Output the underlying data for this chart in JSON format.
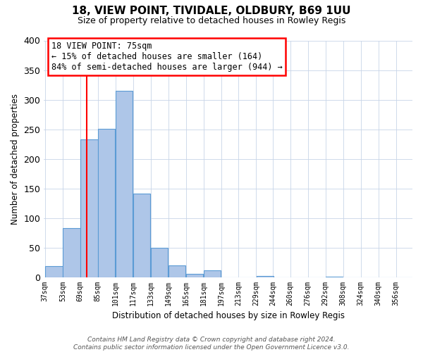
{
  "title": "18, VIEW POINT, TIVIDALE, OLDBURY, B69 1UU",
  "subtitle": "Size of property relative to detached houses in Rowley Regis",
  "xlabel": "Distribution of detached houses by size in Rowley Regis",
  "ylabel": "Number of detached properties",
  "bin_labels": [
    "37sqm",
    "53sqm",
    "69sqm",
    "85sqm",
    "101sqm",
    "117sqm",
    "133sqm",
    "149sqm",
    "165sqm",
    "181sqm",
    "197sqm",
    "213sqm",
    "229sqm",
    "244sqm",
    "260sqm",
    "276sqm",
    "292sqm",
    "308sqm",
    "324sqm",
    "340sqm",
    "356sqm"
  ],
  "bar_values": [
    19,
    83,
    233,
    251,
    315,
    141,
    50,
    20,
    5,
    11,
    0,
    0,
    2,
    0,
    0,
    0,
    1,
    0,
    0,
    0,
    0
  ],
  "bar_color": "#aec6e8",
  "bar_edge_color": "#5b9bd5",
  "vline_x": 75,
  "vline_color": "red",
  "ylim": [
    0,
    400
  ],
  "annotation_line1": "18 VIEW POINT: 75sqm",
  "annotation_line2": "← 15% of detached houses are smaller (164)",
  "annotation_line3": "84% of semi-detached houses are larger (944) →",
  "footer_text": "Contains HM Land Registry data © Crown copyright and database right 2024.\nContains public sector information licensed under the Open Government Licence v3.0.",
  "bin_edges": [
    37,
    53,
    69,
    85,
    101,
    117,
    133,
    149,
    165,
    181,
    197,
    213,
    229,
    244,
    260,
    276,
    292,
    308,
    324,
    340,
    356,
    372
  ]
}
